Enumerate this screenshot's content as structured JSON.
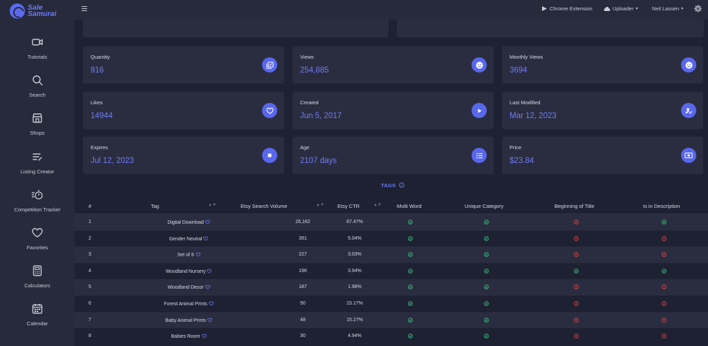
{
  "app": {
    "logo_line1": "Sale",
    "logo_line2": "Samurai",
    "accent": "#5867ec"
  },
  "sidebar": {
    "items": [
      {
        "label": "Tutorials",
        "icon": "video-camera-icon"
      },
      {
        "label": "Search",
        "icon": "search-icon"
      },
      {
        "label": "Shops",
        "icon": "storefront-icon"
      },
      {
        "label": "Listing Creator",
        "icon": "list-edit-icon"
      },
      {
        "label": "Competition Tracker",
        "icon": "stopwatch-list-icon"
      },
      {
        "label": "Favorites",
        "icon": "heart-icon"
      },
      {
        "label": "Calculators",
        "icon": "calculator-icon"
      },
      {
        "label": "Calendar",
        "icon": "calendar-icon"
      }
    ]
  },
  "topbar": {
    "chrome_extension": "Chrome Extension",
    "uploader": "Uploader",
    "user": "Neil Lassen"
  },
  "stats": [
    {
      "label": "Quantity",
      "value": "916",
      "icon": "copy-edit-icon"
    },
    {
      "label": "Views",
      "value": "254,885",
      "icon": "smile-icon"
    },
    {
      "label": "Monthly Views",
      "value": "3694",
      "icon": "smile-icon"
    },
    {
      "label": "Likes",
      "value": "14944",
      "icon": "heart-icon"
    },
    {
      "label": "Created",
      "value": "Jun 5, 2017",
      "icon": "play-icon"
    },
    {
      "label": "Last Modified",
      "value": "Mar 12, 2023",
      "icon": "user-edit-icon"
    },
    {
      "label": "Expires",
      "value": "Jul 12, 2023",
      "icon": "stop-icon"
    },
    {
      "label": "Age",
      "value": "2107 days",
      "icon": "list-icon"
    },
    {
      "label": "Price",
      "value": "$23.84",
      "icon": "money-icon"
    }
  ],
  "tags_section": {
    "title": "TAGS",
    "columns": [
      "#",
      "Tag",
      "Etsy Search Volume",
      "Etsy CTR",
      "Multi Word",
      "Unique Category",
      "Beginning of Title",
      "Is in Description"
    ],
    "rows": [
      {
        "num": "1",
        "tag": "Digital Download",
        "volume": "26,162",
        "ctr": "67.47%",
        "multi": true,
        "unique": true,
        "begin": false,
        "desc": true
      },
      {
        "num": "2",
        "tag": "Gender Neutral",
        "volume": "391",
        "ctr": "5.04%",
        "multi": true,
        "unique": true,
        "begin": false,
        "desc": false
      },
      {
        "num": "3",
        "tag": "Set of 6",
        "volume": "227",
        "ctr": "3.03%",
        "multi": true,
        "unique": true,
        "begin": false,
        "desc": false
      },
      {
        "num": "4",
        "tag": "Woodland Nursery",
        "volume": "196",
        "ctr": "3.94%",
        "multi": true,
        "unique": true,
        "begin": true,
        "desc": true
      },
      {
        "num": "5",
        "tag": "Woodland Decor",
        "volume": "187",
        "ctr": "1.98%",
        "multi": true,
        "unique": true,
        "begin": false,
        "desc": false
      },
      {
        "num": "6",
        "tag": "Forest Animal Prints",
        "volume": "50",
        "ctr": "15.17%",
        "multi": true,
        "unique": true,
        "begin": false,
        "desc": false
      },
      {
        "num": "7",
        "tag": "Baby Animal Prints",
        "volume": "48",
        "ctr": "15.27%",
        "multi": true,
        "unique": true,
        "begin": false,
        "desc": false
      },
      {
        "num": "8",
        "tag": "Babies Room",
        "volume": "30",
        "ctr": "4.94%",
        "multi": true,
        "unique": true,
        "begin": false,
        "desc": false
      }
    ],
    "colors": {
      "check": "#3ec482",
      "cross": "#e5484d",
      "link": "#6d7cf7"
    }
  }
}
